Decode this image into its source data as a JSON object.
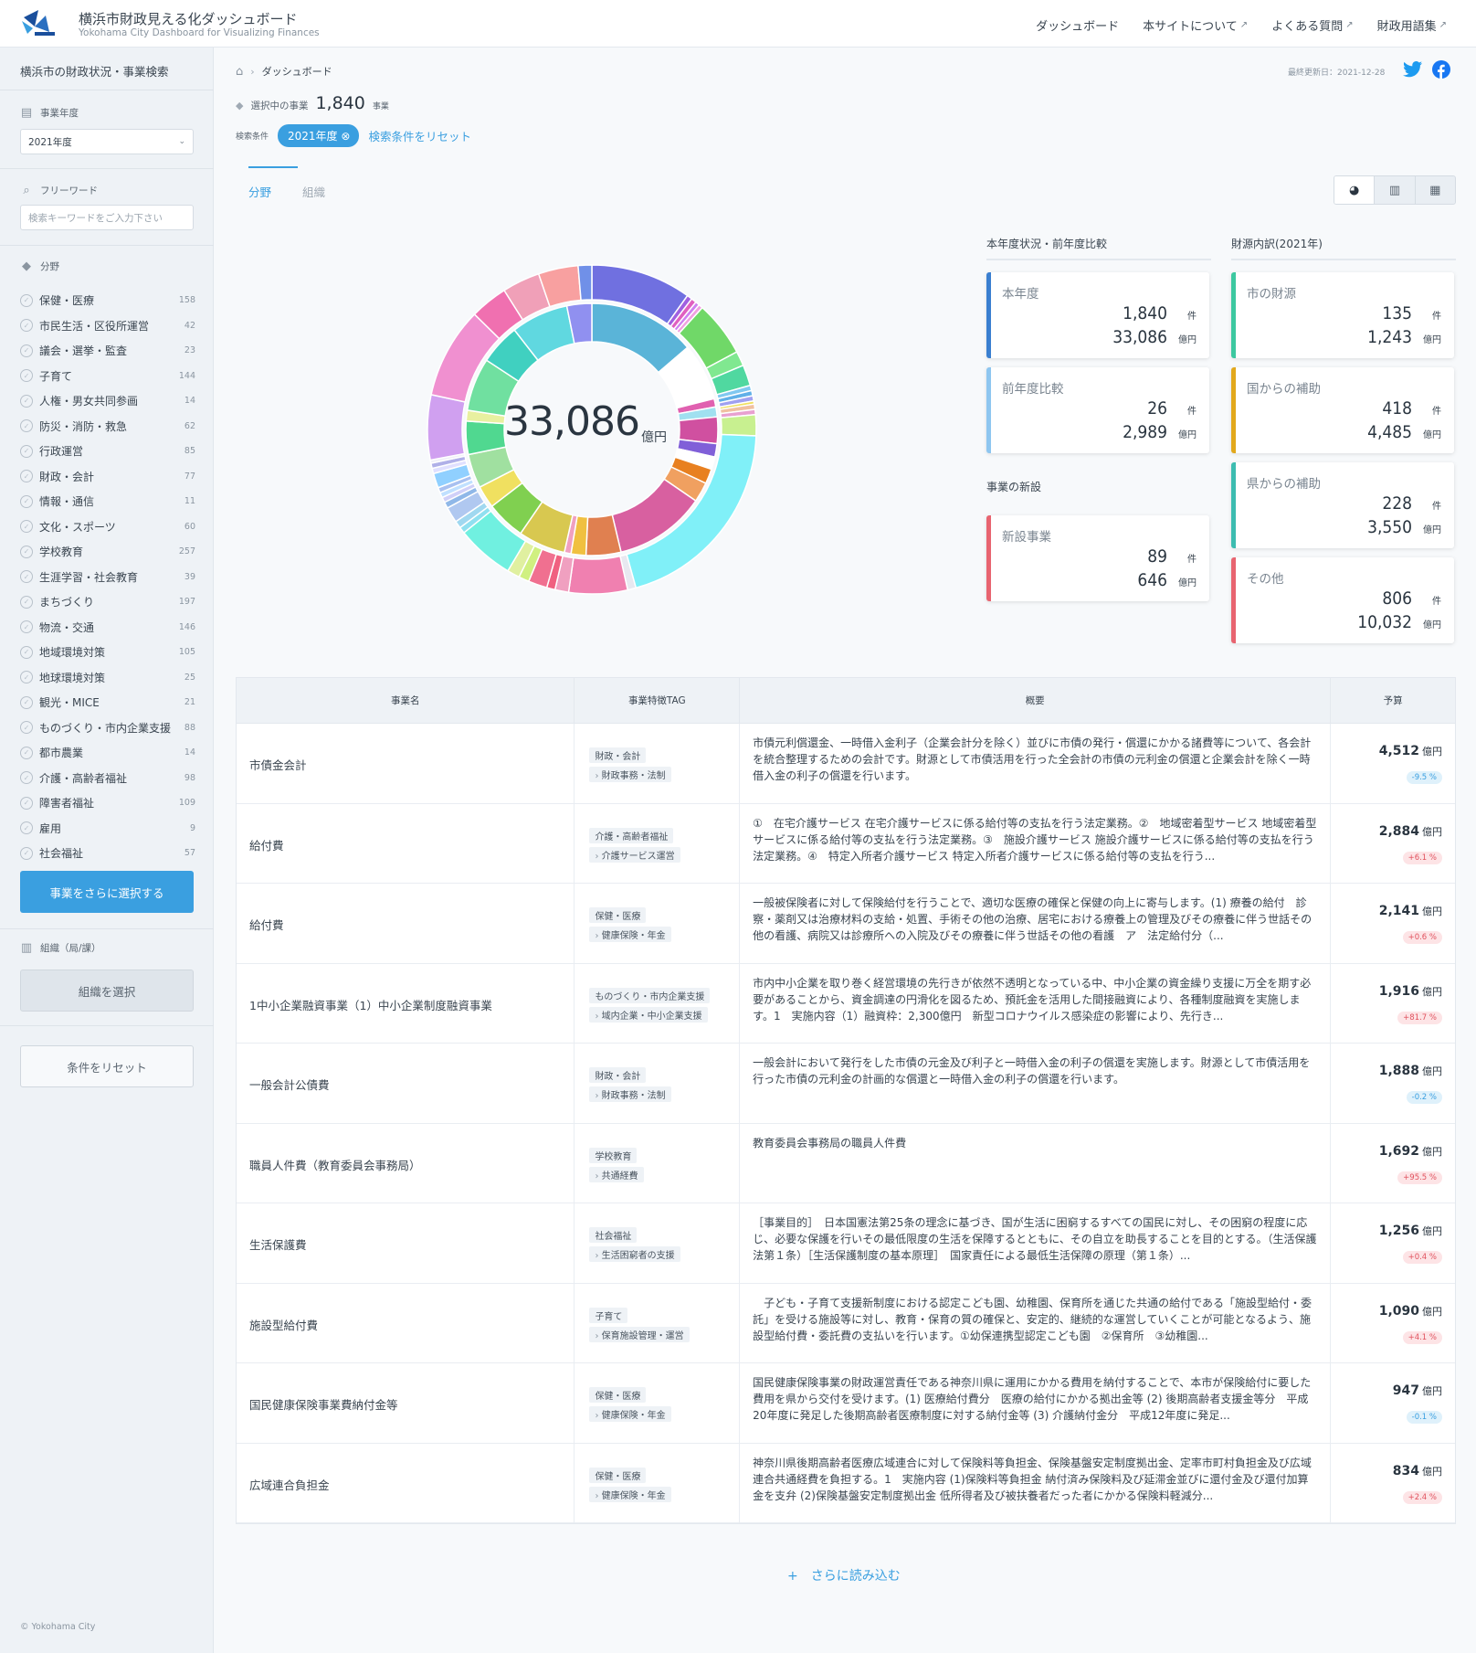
{
  "header": {
    "title": "横浜市財政見える化ダッシュボード",
    "subtitle": "Yokohama City Dashboard for Visualizing Finances",
    "nav": [
      "ダッシュボード",
      "本サイトについて",
      "よくある質問",
      "財政用語集"
    ]
  },
  "sidebar": {
    "title": "横浜市の財政状況・事業検索",
    "year_label": "事業年度",
    "year_value": "2021年度",
    "keyword_label": "フリーワード",
    "keyword_placeholder": "検索キーワードをご入力下さい",
    "field_label": "分野",
    "categories": [
      {
        "name": "保健・医療",
        "count": "158"
      },
      {
        "name": "市民生活・区役所運営",
        "count": "42"
      },
      {
        "name": "議会・選挙・監査",
        "count": "23"
      },
      {
        "name": "子育て",
        "count": "144"
      },
      {
        "name": "人権・男女共同参画",
        "count": "14"
      },
      {
        "name": "防災・消防・救急",
        "count": "62"
      },
      {
        "name": "行政運営",
        "count": "85"
      },
      {
        "name": "財政・会計",
        "count": "77"
      },
      {
        "name": "情報・通信",
        "count": "11"
      },
      {
        "name": "文化・スポーツ",
        "count": "60"
      },
      {
        "name": "学校教育",
        "count": "257"
      },
      {
        "name": "生涯学習・社会教育",
        "count": "39"
      },
      {
        "name": "まちづくり",
        "count": "197"
      },
      {
        "name": "物流・交通",
        "count": "146"
      },
      {
        "name": "地域環境対策",
        "count": "105"
      },
      {
        "name": "地球環境対策",
        "count": "25"
      },
      {
        "name": "観光・MICE",
        "count": "21"
      },
      {
        "name": "ものづくり・市内企業支援",
        "count": "88"
      },
      {
        "name": "都市農業",
        "count": "14"
      },
      {
        "name": "介護・高齢者福祉",
        "count": "98"
      },
      {
        "name": "障害者福祉",
        "count": "109"
      },
      {
        "name": "雇用",
        "count": "9"
      },
      {
        "name": "社会福祉",
        "count": "57"
      }
    ],
    "select_more": "事業をさらに選択する",
    "org_label": "組織（局/課）",
    "org_button": "組織を選択",
    "reset_button": "条件をリセット",
    "copyright": "© Yokohama City"
  },
  "main": {
    "breadcrumb": "ダッシュボード",
    "updated": "最終更新日：2021-12-28",
    "selected_label": "選択中の事業",
    "selected_count": "1,840",
    "selected_unit": "事業",
    "cond_label": "検索条件",
    "cond_chip": "2021年度",
    "reset_link": "検索条件をリセット",
    "tabs": [
      "分野",
      "組織"
    ],
    "donut_total": "33,086",
    "donut_unit": "億円",
    "sec_year": "本年度状況・前年度比較",
    "sec_new": "事業の新設",
    "sec_source": "財源内訳(2021年)",
    "unit_count": "件",
    "unit_money": "億円",
    "cards": [
      {
        "title": "本年度",
        "count": "1,840",
        "amount": "33,086",
        "color": "#3a7fd0"
      },
      {
        "title": "前年度比較",
        "count": "26",
        "amount": "2,989",
        "color": "#8ec6f0"
      },
      {
        "title": "新設事業",
        "count": "89",
        "amount": "646",
        "color": "#e86470"
      },
      {
        "title": "市の財源",
        "count": "135",
        "amount": "1,243",
        "color": "#3cc8a0"
      },
      {
        "title": "国からの補助",
        "count": "418",
        "amount": "4,485",
        "color": "#e2a81c"
      },
      {
        "title": "県からの補助",
        "count": "228",
        "amount": "3,550",
        "color": "#3cbcb0"
      },
      {
        "title": "その他",
        "count": "806",
        "amount": "10,032",
        "color": "#e86470"
      }
    ],
    "table_headers": [
      "事業名",
      "事業特徴TAG",
      "概要",
      "予算"
    ],
    "rows": [
      {
        "name": "市債金会計",
        "tag1": "財政・会計",
        "tag2": "財政事務・法制",
        "desc": "市債元利償還金、一時借入金利子（企業会計分を除く）並びに市債の発行・償還にかかる諸費等について、各会計を統合整理するための会計です。財源として市債活用を行った全会計の市債の元利金の償還と企業会計を除く一時借入金の利子の償還を行います。",
        "budget": "4,512",
        "pct": "-9.5 %",
        "dir": "dn"
      },
      {
        "name": "給付費",
        "tag1": "介護・高齢者福祉",
        "tag2": "介護サービス運営",
        "desc": "①　在宅介護サービス 在宅介護サービスに係る給付等の支払を行う法定業務。②　地域密着型サービス 地域密着型サービスに係る給付等の支払を行う法定業務。③　施設介護サービス 施設介護サービスに係る給付等の支払を行う法定業務。④　特定入所者介護サービス 特定入所者介護サービスに係る給付等の支払を行う...",
        "budget": "2,884",
        "pct": "+6.1 %",
        "dir": "up"
      },
      {
        "name": "給付費",
        "tag1": "保健・医療",
        "tag2": "健康保険・年金",
        "desc": "一般被保険者に対して保険給付を行うことで、適切な医療の確保と保健の向上に寄与します。(1) 療養の給付　診察・薬剤又は治療材料の支給・処置、手術その他の治療、居宅における療養上の管理及びその療養に伴う世話その他の看護、病院又は診療所への入院及びその療養に伴う世話その他の看護　ア　法定給付分（...",
        "budget": "2,141",
        "pct": "+0.6 %",
        "dir": "up"
      },
      {
        "name": "1中小企業融資事業（1）中小企業制度融資事業",
        "tag1": "ものづくり・市内企業支援",
        "tag2": "域内企業・中小企業支援",
        "desc": "市内中小企業を取り巻く経営環境の先行きが依然不透明となっている中、中小企業の資金繰り支援に万全を期す必要があることから、資金調達の円滑化を図るため、預託金を活用した間接融資により、各種制度融資を実施します。1　実施内容（1）融資枠：2,300億円　新型コロナウイルス感染症の影響により、先行き...",
        "budget": "1,916",
        "pct": "+81.7 %",
        "dir": "up"
      },
      {
        "name": "一般会計公債費",
        "tag1": "財政・会計",
        "tag2": "財政事務・法制",
        "desc": "一般会計において発行をした市債の元金及び利子と一時借入金の利子の償還を実施します。財源として市債活用を行った市債の元利金の計画的な償還と一時借入金の利子の償還を行います。",
        "budget": "1,888",
        "pct": "-0.2 %",
        "dir": "dn"
      },
      {
        "name": "職員人件費（教育委員会事務局）",
        "tag1": "学校教育",
        "tag2": "共通経費",
        "desc": "教育委員会事務局の職員人件費",
        "budget": "1,692",
        "pct": "+95.5 %",
        "dir": "up"
      },
      {
        "name": "生活保護費",
        "tag1": "社会福祉",
        "tag2": "生活困窮者の支援",
        "desc": "［事業目的］　日本国憲法第25条の理念に基づき、国が生活に困窮するすべての国民に対し、その困窮の程度に応じ、必要な保護を行いその最低限度の生活を保障するとともに、その自立を助長することを目的とする。（生活保護法第１条）［生活保護制度の基本原理］　国家責任による最低生活保障の原理（第１条）...",
        "budget": "1,256",
        "pct": "+0.4 %",
        "dir": "up"
      },
      {
        "name": "施設型給付費",
        "tag1": "子育て",
        "tag2": "保育施設管理・運営",
        "desc": "　子ども・子育て支援新制度における認定こども園、幼稚園、保育所を通じた共通の給付である「施設型給付・委託」を受ける施設等に対し、教育・保育の質の確保と、安定的、継続的な運営していくことが可能となるよう、施設型給付費・委託費の支払いを行います。①幼保連携型認定こども園　②保育所　③幼稚園...",
        "budget": "1,090",
        "pct": "+4.1 %",
        "dir": "up"
      },
      {
        "name": "国民健康保険事業費納付金等",
        "tag1": "保健・医療",
        "tag2": "健康保険・年金",
        "desc": "国民健康保険事業の財政運営責任である神奈川県に運用にかかる費用を納付することで、本市が保険給付に要した費用を県から交付を受けます。(1) 医療給付費分　医療の給付にかかる拠出金等 (2) 後期高齢者支援金等分　平成20年度に発足した後期高齢者医療制度に対する納付金等 (3) 介護納付金分　平成12年度に発足...",
        "budget": "947",
        "pct": "-0.1 %",
        "dir": "dn"
      },
      {
        "name": "広域連合負担金",
        "tag1": "保健・医療",
        "tag2": "健康保険・年金",
        "desc": "神奈川県後期高齢者医療広域連合に対して保険料等負担金、保険基盤安定制度拠出金、定率市町村負担金及び広域連合共通経費を負担する。1　実施内容 (1)保険料等負担金 納付済み保険料及び延滞金並びに還付金及び還付加算金を支弁 (2)保険基盤安定制度拠出金 低所得者及び被扶養者だった者にかかる保険料軽減分...",
        "budget": "834",
        "pct": "+2.4 %",
        "dir": "up"
      }
    ],
    "load_more": "+　さらに読み込む"
  },
  "donut": {
    "inner": [
      12.9,
      6.9,
      1.0,
      1.2,
      3.2,
      1.6,
      1.5,
      1.8,
      2.4,
      11.0,
      4.2,
      1.8,
      0.8,
      5.7,
      4.7,
      2.7,
      4.1,
      4.0,
      1.3,
      6.4,
      4.9,
      6.9,
      3.0
    ],
    "inner_colors": [
      "#5ab4d8",
      "#ffffff",
      "#e060b0",
      "#a0e0f0",
      "#d050a0",
      "#8060d8",
      "#ffffff",
      "#e88020",
      "#f0a060",
      "#d860a0",
      "#e08050",
      "#f0c040",
      "#f0a0c0",
      "#d8c850",
      "#80d050",
      "#f0e060",
      "#a0e0a0",
      "#50d890",
      "#e8f0a0",
      "#70e0a0",
      "#40d0c0",
      "#60d8e0",
      "#9090f0"
    ],
    "outer": [
      9.6,
      0.5,
      0.5,
      0.4,
      0.4,
      5.3,
      1.4,
      2.0,
      0.5,
      0.5,
      0.5,
      0.3,
      0.5,
      0.5,
      2.0,
      19.5,
      0.8,
      5.6,
      1.3,
      0.8,
      1.8,
      1.0,
      1.2,
      5.5,
      0.6,
      0.7,
      1.5,
      0.6,
      0.5,
      0.5,
      0.5,
      1.4,
      0.5,
      0.5,
      0.3,
      6.2,
      8.7,
      3.6,
      3.6,
      3.8,
      1.3
    ],
    "outer_colors": [
      "#7070e0",
      "#a060e0",
      "#e060c0",
      "#d080f0",
      "#f0a0e0",
      "#70d868",
      "#80e890",
      "#50d8a0",
      "#80c8f0",
      "#60b0e8",
      "#a0a0f0",
      "#f0e060",
      "#f0c0a0",
      "#e8a0d0",
      "#c8f090",
      "#80f0f8",
      "#e8e8f0",
      "#f080b0",
      "#f0a0c0",
      "#f06080",
      "#f07090",
      "#d0f080",
      "#e0f0a0",
      "#70f0e0",
      "#90e0f0",
      "#a0d8f0",
      "#b0c8f0",
      "#90b8e8",
      "#d0d0f8",
      "#c0e0ff",
      "#a8c0f0",
      "#90d0ff",
      "#e0e0ff",
      "#b0b0e8",
      "#f0f0f8",
      "#d0a0f0",
      "#f090d0",
      "#f070b0",
      "#f0a0b8",
      "#f8a0a0",
      "#7090e8"
    ]
  }
}
